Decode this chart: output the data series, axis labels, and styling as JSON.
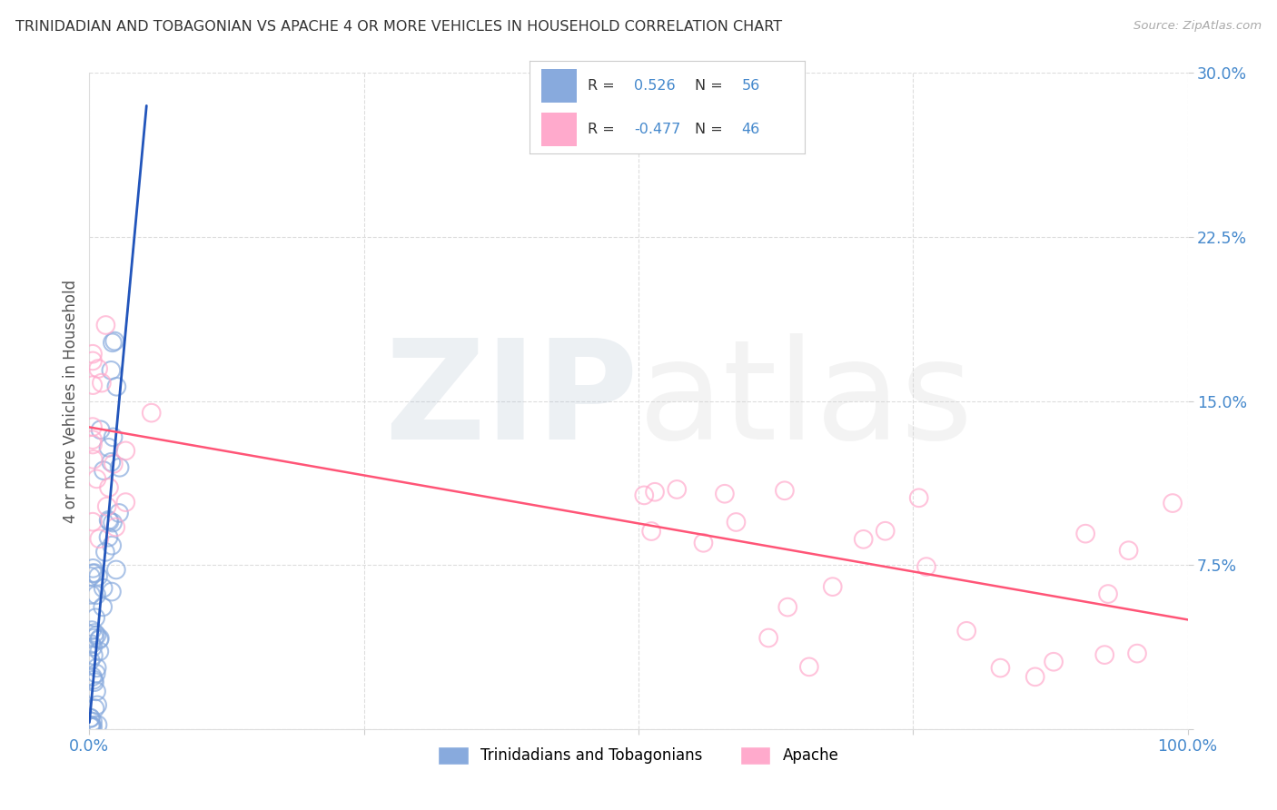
{
  "title": "TRINIDADIAN AND TOBAGONIAN VS APACHE 4 OR MORE VEHICLES IN HOUSEHOLD CORRELATION CHART",
  "source": "Source: ZipAtlas.com",
  "ylabel": "4 or more Vehicles in Household",
  "xlim": [
    0.0,
    1.0
  ],
  "ylim": [
    0.0,
    0.3
  ],
  "blue_R": "0.526",
  "blue_N": "56",
  "pink_R": "-0.477",
  "pink_N": "46",
  "blue_scatter_color": "#88AADD",
  "pink_scatter_color": "#FFAACC",
  "blue_line_color": "#2255BB",
  "pink_line_color": "#FF5577",
  "tick_color": "#4488CC",
  "grid_color": "#DDDDDD",
  "title_color": "#333333",
  "source_color": "#AAAAAA",
  "ylabel_color": "#555555",
  "blue_label": "Trinidadians and Tobagonians",
  "pink_label": "Apache",
  "legend_text_color": "#333333",
  "legend_value_color": "#4488CC",
  "blue_line_x0": 0.0,
  "blue_line_y0": 0.003,
  "blue_line_x1": 0.052,
  "blue_line_y1": 0.285,
  "pink_line_x0": 0.0,
  "pink_line_y0": 0.138,
  "pink_line_x1": 1.0,
  "pink_line_y1": 0.05
}
